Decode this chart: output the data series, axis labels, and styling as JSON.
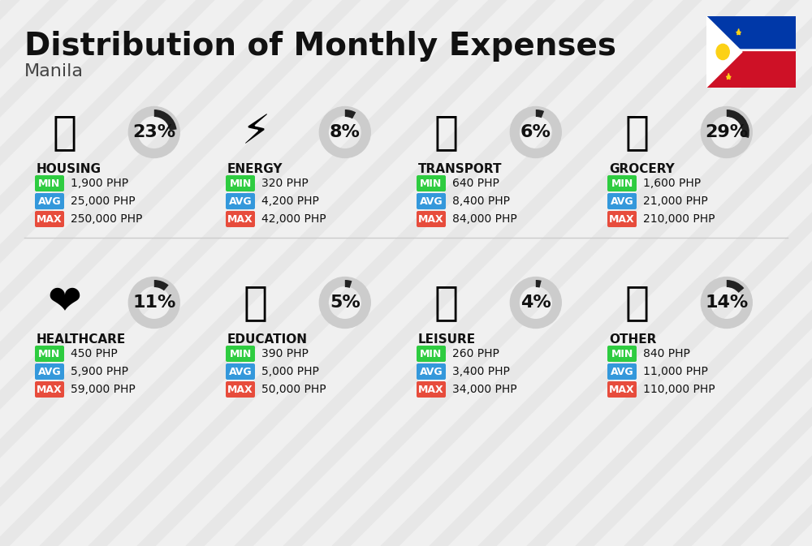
{
  "title": "Distribution of Monthly Expenses",
  "subtitle": "Manila",
  "bg_color": "#f0f0f0",
  "categories": [
    {
      "name": "HOUSING",
      "percent": 23,
      "min": "1,900 PHP",
      "avg": "25,000 PHP",
      "max": "250,000 PHP",
      "emoji": "🏢",
      "row": 0,
      "col": 0
    },
    {
      "name": "ENERGY",
      "percent": 8,
      "min": "320 PHP",
      "avg": "4,200 PHP",
      "max": "42,000 PHP",
      "emoji": "⚡",
      "row": 0,
      "col": 1
    },
    {
      "name": "TRANSPORT",
      "percent": 6,
      "min": "640 PHP",
      "avg": "8,400 PHP",
      "max": "84,000 PHP",
      "emoji": "🚌",
      "row": 0,
      "col": 2
    },
    {
      "name": "GROCERY",
      "percent": 29,
      "min": "1,600 PHP",
      "avg": "21,000 PHP",
      "max": "210,000 PHP",
      "emoji": "🛒",
      "row": 0,
      "col": 3
    },
    {
      "name": "HEALTHCARE",
      "percent": 11,
      "min": "450 PHP",
      "avg": "5,900 PHP",
      "max": "59,000 PHP",
      "emoji": "❤️",
      "row": 1,
      "col": 0
    },
    {
      "name": "EDUCATION",
      "percent": 5,
      "min": "390 PHP",
      "avg": "5,000 PHP",
      "max": "50,000 PHP",
      "emoji": "🎓",
      "row": 1,
      "col": 1
    },
    {
      "name": "LEISURE",
      "percent": 4,
      "min": "260 PHP",
      "avg": "3,400 PHP",
      "max": "34,000 PHP",
      "emoji": "🛍️",
      "row": 1,
      "col": 2
    },
    {
      "name": "OTHER",
      "percent": 14,
      "min": "840 PHP",
      "avg": "11,000 PHP",
      "max": "110,000 PHP",
      "emoji": "💰",
      "row": 1,
      "col": 3
    }
  ],
  "min_color": "#2ecc40",
  "avg_color": "#3498db",
  "max_color": "#e74c3c",
  "label_text_color": "#ffffff",
  "ring_filled_color": "#222222",
  "ring_empty_color": "#cccccc",
  "title_fontsize": 28,
  "subtitle_fontsize": 16,
  "category_fontsize": 11,
  "value_fontsize": 10,
  "percent_fontsize": 18
}
